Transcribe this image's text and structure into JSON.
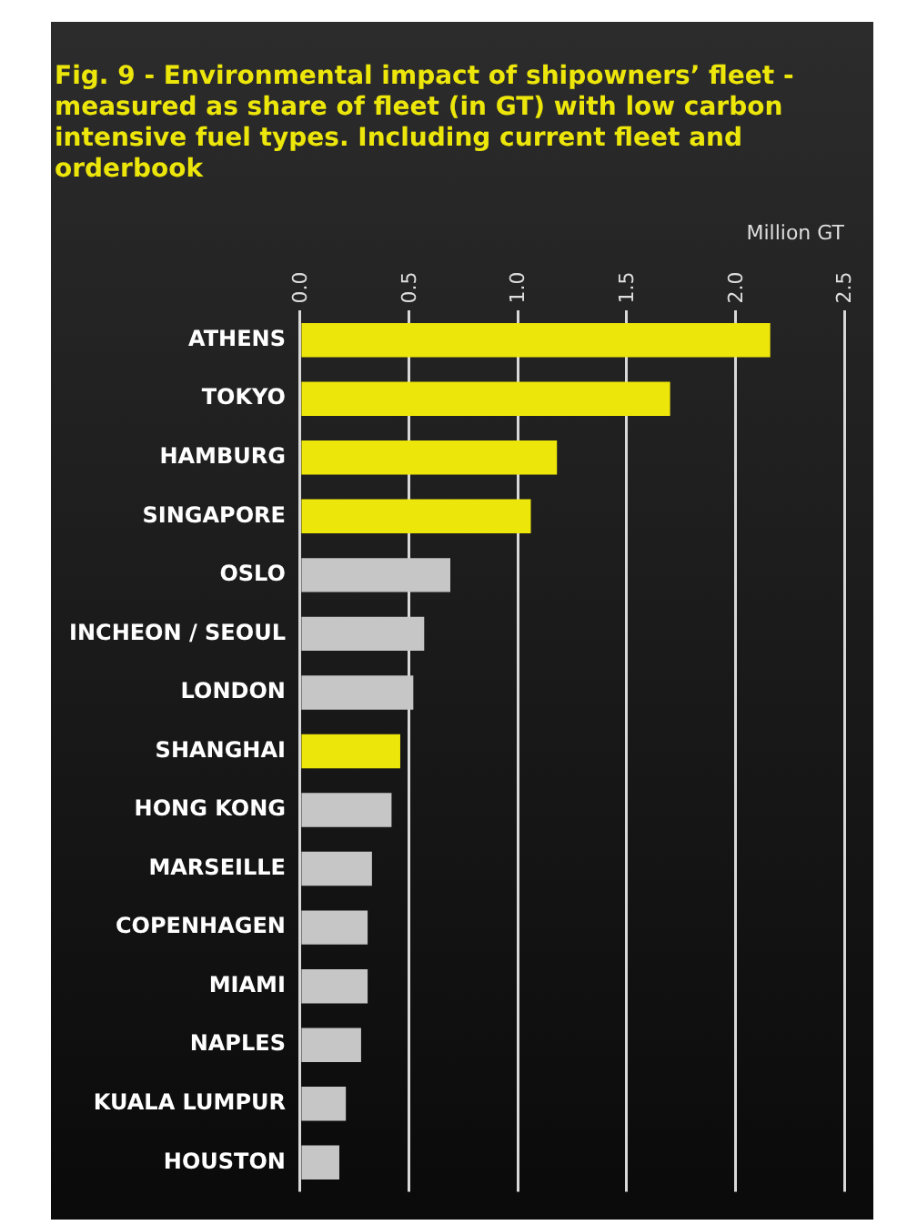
{
  "chart_data": {
    "type": "bar",
    "orientation": "horizontal",
    "title": "Fig. 9 - Environmental impact of shipowners’ fleet - measured as share of fleet (in GT) with low carbon intensive fuel types. Including current fleet and orderbook",
    "xlabel": "Million GT",
    "categories": [
      "ATHENS",
      "TOKYO",
      "HAMBURG",
      "SINGAPORE",
      "OSLO",
      "INCHEON / SEOUL",
      "LONDON",
      "SHANGHAI",
      "HONG KONG",
      "MARSEILLE",
      "COPENHAGEN",
      "MIAMI",
      "NAPLES",
      "KUALA LUMPUR",
      "HOUSTON"
    ],
    "values": [
      2.16,
      1.7,
      1.18,
      1.06,
      0.69,
      0.57,
      0.52,
      0.46,
      0.42,
      0.33,
      0.31,
      0.31,
      0.28,
      0.21,
      0.18
    ],
    "colors": [
      "#ede60a",
      "#ede60a",
      "#ede60a",
      "#ede60a",
      "#c6c6c6",
      "#c6c6c6",
      "#c6c6c6",
      "#ede60a",
      "#c6c6c6",
      "#c6c6c6",
      "#c6c6c6",
      "#c6c6c6",
      "#c6c6c6",
      "#c6c6c6",
      "#c6c6c6"
    ],
    "xlim": [
      0,
      2.5
    ],
    "xticks": [
      {
        "value": 0,
        "label": "0.0"
      },
      {
        "value": 0.5,
        "label": "0.5"
      },
      {
        "value": 1,
        "label": "1.0"
      },
      {
        "value": 1.5,
        "label": "1.5"
      },
      {
        "value": 2,
        "label": "2.0"
      },
      {
        "value": 2.5,
        "label": "2.5"
      }
    ],
    "grid": "x",
    "legend": false
  }
}
